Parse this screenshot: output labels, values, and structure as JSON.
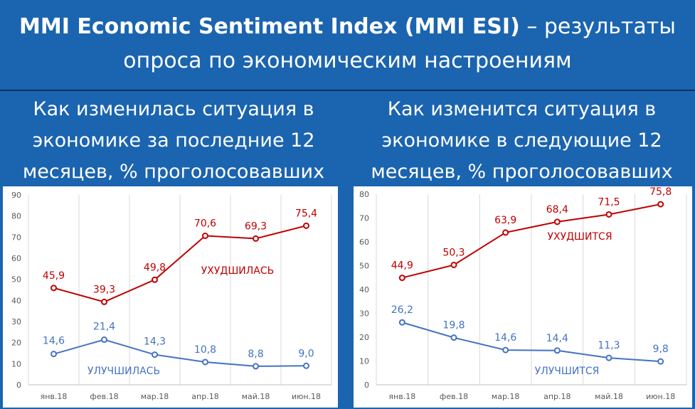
{
  "header": {
    "title_bold": "MMI Economic Sentiment Index (MMI ESI)",
    "title_rest": " – результаты",
    "title_line2": "опроса по экономическим настроениям"
  },
  "charts": [
    {
      "subtitle_lines": [
        "Как изменилась ситуация в",
        "экономике за последние 12",
        "месяцев, % проголосовавших"
      ]
    },
    {
      "subtitle_lines": [
        "Как изменится ситуация в",
        "экономике в следующие 12",
        "месяцев, % проголосовавших"
      ]
    }
  ],
  "chart_data": [
    {
      "type": "line",
      "categories": [
        "янв.18",
        "фев.18",
        "мар.18",
        "апр.18",
        "май.18",
        "июн.18"
      ],
      "ylim": [
        0,
        90
      ],
      "yticks": [
        0,
        10,
        20,
        30,
        40,
        50,
        60,
        70,
        80,
        90
      ],
      "grid": "vertical",
      "series": [
        {
          "name": "УХУДШИЛАСЬ",
          "color": "#c00000",
          "values": [
            45.9,
            39.3,
            49.8,
            70.6,
            69.3,
            75.4
          ],
          "labels": [
            "45,9",
            "39,3",
            "49,8",
            "70,6",
            "69,3",
            "75,4"
          ]
        },
        {
          "name": "УЛУЧШИЛАСЬ",
          "color": "#4472c4",
          "values": [
            14.6,
            21.4,
            14.3,
            10.8,
            8.8,
            9.0
          ],
          "labels": [
            "14,6",
            "21,4",
            "14,3",
            "10,8",
            "8,8",
            "9,0"
          ]
        }
      ]
    },
    {
      "type": "line",
      "categories": [
        "янв.18",
        "фев.18",
        "мар.18",
        "апр.18",
        "май.18",
        "июн.18"
      ],
      "ylim": [
        0,
        80
      ],
      "yticks": [
        0,
        10,
        20,
        30,
        40,
        50,
        60,
        70,
        80
      ],
      "grid": "vertical",
      "series": [
        {
          "name": "УХУДШИТСЯ",
          "color": "#c00000",
          "values": [
            44.9,
            50.3,
            63.9,
            68.4,
            71.5,
            75.8
          ],
          "labels": [
            "44,9",
            "50,3",
            "63,9",
            "68,4",
            "71,5",
            "75,8"
          ]
        },
        {
          "name": "УЛУЧШИТСЯ",
          "color": "#4472c4",
          "values": [
            26.2,
            19.8,
            14.6,
            14.4,
            11.3,
            9.8
          ],
          "labels": [
            "26,2",
            "19,8",
            "14,6",
            "14,4",
            "11,3",
            "9,8"
          ]
        }
      ]
    }
  ]
}
